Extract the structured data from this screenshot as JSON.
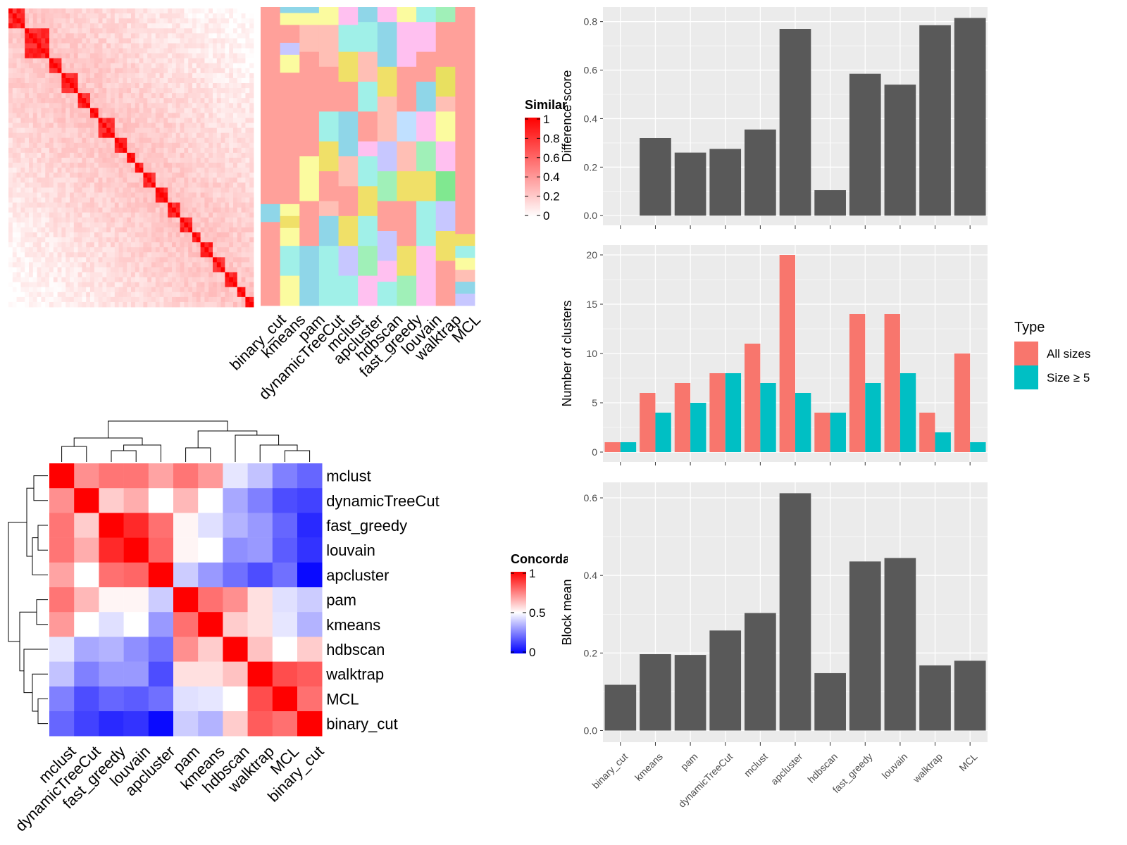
{
  "methods": [
    "binary_cut",
    "kmeans",
    "pam",
    "dynamicTreeCut",
    "mclust",
    "apcluster",
    "hdbscan",
    "fast_greedy",
    "louvain",
    "walktrap",
    "MCL"
  ],
  "similarity_legend": {
    "title": "Similarity",
    "ticks": [
      "1",
      "0.8",
      "0.6",
      "0.4",
      "0.2",
      "0"
    ]
  },
  "concordance_legend": {
    "title": "Concordance",
    "ticks": [
      "1",
      "0.5",
      "0"
    ]
  },
  "chart_data": [
    {
      "type": "heatmap",
      "name": "similarity-heatmap",
      "n_terms": 60,
      "scale": [
        0,
        1
      ],
      "colors": {
        "low": "#ffffff",
        "high": "#ff0000"
      }
    },
    {
      "type": "heatmap",
      "name": "cluster-assignment-panel",
      "columns": [
        "binary_cut",
        "kmeans",
        "pam",
        "dynamicTreeCut",
        "mclust",
        "apcluster",
        "hdbscan",
        "fast_greedy",
        "louvain",
        "walktrap",
        "MCL"
      ]
    },
    {
      "type": "heatmap",
      "name": "concordance-heatmap",
      "rows": [
        "mclust",
        "dynamicTreeCut",
        "fast_greedy",
        "louvain",
        "apcluster",
        "pam",
        "kmeans",
        "hdbscan",
        "walktrap",
        "MCL",
        "binary_cut"
      ],
      "columns": [
        "mclust",
        "dynamicTreeCut",
        "fast_greedy",
        "louvain",
        "apcluster",
        "pam",
        "kmeans",
        "hdbscan",
        "walktrap",
        "MCL",
        "binary_cut"
      ],
      "values": [
        [
          1.0,
          0.72,
          0.77,
          0.77,
          0.68,
          0.77,
          0.7,
          0.45,
          0.38,
          0.25,
          0.2
        ],
        [
          0.72,
          1.0,
          0.6,
          0.66,
          0.5,
          0.64,
          0.5,
          0.33,
          0.25,
          0.15,
          0.13
        ],
        [
          0.77,
          0.6,
          1.0,
          0.92,
          0.78,
          0.52,
          0.44,
          0.35,
          0.3,
          0.2,
          0.08
        ],
        [
          0.77,
          0.66,
          0.92,
          1.0,
          0.8,
          0.52,
          0.5,
          0.28,
          0.3,
          0.18,
          0.1
        ],
        [
          0.68,
          0.5,
          0.78,
          0.8,
          1.0,
          0.4,
          0.3,
          0.22,
          0.15,
          0.22,
          0.02
        ],
        [
          0.77,
          0.64,
          0.52,
          0.52,
          0.4,
          1.0,
          0.78,
          0.72,
          0.56,
          0.44,
          0.4
        ],
        [
          0.7,
          0.5,
          0.44,
          0.5,
          0.3,
          0.78,
          1.0,
          0.6,
          0.56,
          0.45,
          0.35
        ],
        [
          0.45,
          0.33,
          0.35,
          0.28,
          0.22,
          0.72,
          0.6,
          1.0,
          0.62,
          0.5,
          0.6
        ],
        [
          0.38,
          0.25,
          0.3,
          0.3,
          0.15,
          0.56,
          0.56,
          0.62,
          1.0,
          0.85,
          0.82
        ],
        [
          0.25,
          0.15,
          0.2,
          0.18,
          0.22,
          0.44,
          0.45,
          0.5,
          0.85,
          1.0,
          0.78
        ],
        [
          0.2,
          0.13,
          0.08,
          0.1,
          0.02,
          0.4,
          0.35,
          0.6,
          0.82,
          0.78,
          1.0
        ]
      ],
      "scale": [
        0,
        1
      ],
      "colors": {
        "low": "#0000ff",
        "mid": "#ffffff",
        "high": "#ff0000"
      }
    },
    {
      "type": "bar",
      "name": "difference-score-chart",
      "categories": [
        "binary_cut",
        "kmeans",
        "pam",
        "dynamicTreeCut",
        "mclust",
        "apcluster",
        "hdbscan",
        "fast_greedy",
        "louvain",
        "walktrap",
        "MCL"
      ],
      "values": [
        0.0,
        0.32,
        0.26,
        0.275,
        0.355,
        0.77,
        0.105,
        0.585,
        0.54,
        0.785,
        0.815
      ],
      "ylabel": "Difference score",
      "ylim": [
        -0.04,
        0.86
      ],
      "yticks": [
        0.0,
        0.2,
        0.4,
        0.6,
        0.8
      ],
      "ytick_labels": [
        "0.0",
        "0.2",
        "0.4",
        "0.6",
        "0.8"
      ],
      "show_xtick_labels": false,
      "bar_color": "#595959"
    },
    {
      "type": "bar",
      "name": "number-of-clusters-chart",
      "categories": [
        "binary_cut",
        "kmeans",
        "pam",
        "dynamicTreeCut",
        "mclust",
        "apcluster",
        "hdbscan",
        "fast_greedy",
        "louvain",
        "walktrap",
        "MCL"
      ],
      "series": [
        {
          "name": "All sizes",
          "color": "#F8766D",
          "values": [
            1,
            6,
            7,
            8,
            11,
            20,
            4,
            14,
            14,
            4,
            10
          ]
        },
        {
          "name": "Size ≥ 5",
          "color": "#00BFC4",
          "values": [
            1,
            4,
            5,
            8,
            7,
            6,
            4,
            7,
            8,
            2,
            1
          ]
        }
      ],
      "ylabel": "Number of clusters",
      "ylim": [
        -1,
        21
      ],
      "yticks": [
        0,
        5,
        10,
        15,
        20
      ],
      "ytick_labels": [
        "0",
        "5",
        "10",
        "15",
        "20"
      ],
      "show_xtick_labels": false,
      "legend": {
        "title": "Type",
        "position": "right"
      }
    },
    {
      "type": "bar",
      "name": "block-mean-chart",
      "categories": [
        "binary_cut",
        "kmeans",
        "pam",
        "dynamicTreeCut",
        "mclust",
        "apcluster",
        "hdbscan",
        "fast_greedy",
        "louvain",
        "walktrap",
        "MCL"
      ],
      "values": [
        0.118,
        0.197,
        0.195,
        0.258,
        0.303,
        0.612,
        0.148,
        0.436,
        0.445,
        0.168,
        0.18
      ],
      "ylabel": "Block mean",
      "ylim": [
        -0.03,
        0.64
      ],
      "yticks": [
        0.0,
        0.2,
        0.4,
        0.6
      ],
      "ytick_labels": [
        "0.0",
        "0.2",
        "0.4",
        "0.6"
      ],
      "show_xtick_labels": true,
      "bar_color": "#595959"
    }
  ]
}
